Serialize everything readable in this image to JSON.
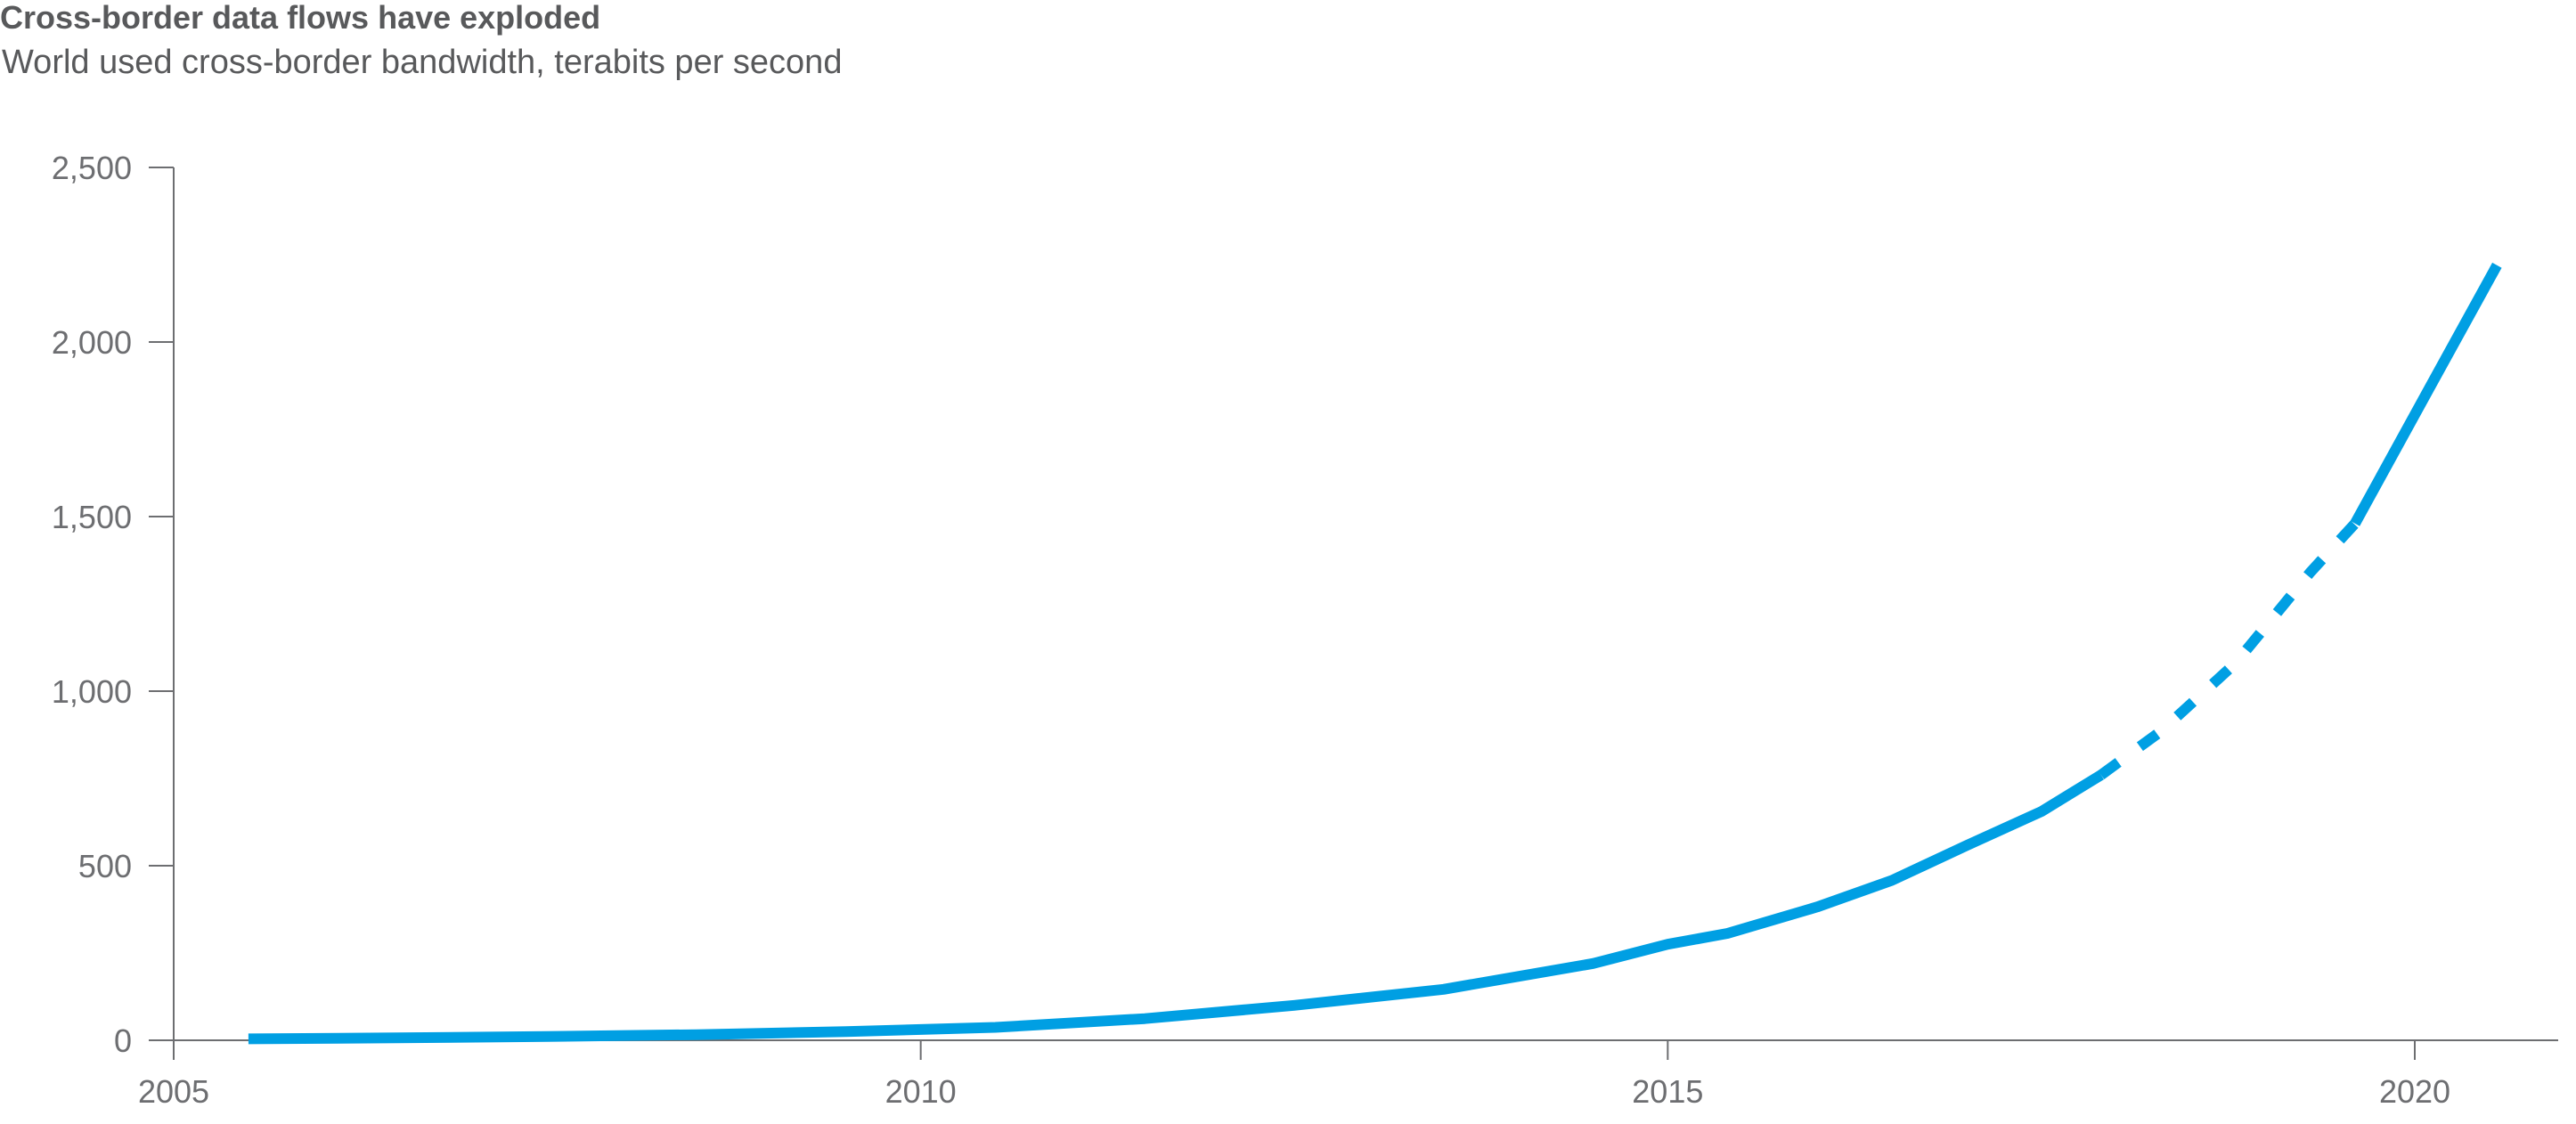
{
  "chart_data": {
    "type": "line",
    "title": "Cross-border data flows have exploded",
    "subtitle": "World used cross-border bandwidth, terabits per second",
    "xlabel": "",
    "ylabel": "",
    "xlim": [
      2005,
      2021
    ],
    "ylim": [
      0,
      2500
    ],
    "x_ticks": [
      2005,
      2010,
      2015,
      2020
    ],
    "x_tick_labels": [
      "2005",
      "2010",
      "2015",
      "2020"
    ],
    "y_ticks": [
      0,
      500,
      1000,
      1500,
      2000,
      2500
    ],
    "y_tick_labels": [
      "0",
      "500",
      "1,000",
      "1,500",
      "2,000",
      "2,500"
    ],
    "grid": false,
    "line_color": "#009fe3",
    "axis_color": "#6d6e71",
    "series": [
      {
        "style": "solid",
        "x": [
          2005.5,
          2006.5,
          2007.5,
          2008.5,
          2009.5,
          2010.5,
          2011.5,
          2012.5,
          2013.5,
          2014.5,
          2015.0,
          2015.4,
          2016.0,
          2016.5,
          2017.0,
          2017.5,
          2017.9
        ],
        "values": [
          4,
          7,
          11,
          16,
          25,
          37,
          62,
          100,
          146,
          220,
          275,
          306,
          382,
          458,
          558,
          655,
          760
        ]
      },
      {
        "style": "dashed",
        "x": [
          2017.9,
          2018.3,
          2018.8,
          2019.3,
          2019.6
        ],
        "values": [
          760,
          885,
          1080,
          1340,
          1480
        ]
      },
      {
        "style": "solid",
        "x": [
          2019.6,
          2020.1,
          2020.55
        ],
        "values": [
          1480,
          1870,
          2220
        ]
      }
    ]
  }
}
